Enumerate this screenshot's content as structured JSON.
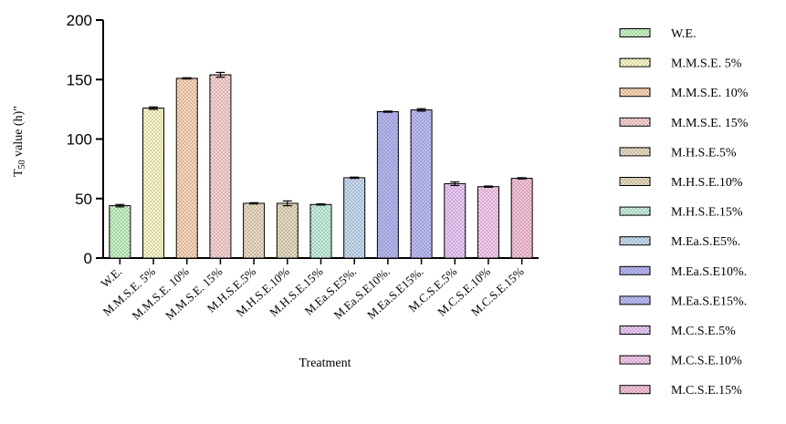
{
  "chart_data": {
    "type": "bar",
    "xlabel": "Treatment",
    "ylabel_main": "T",
    "ylabel_sub": "50",
    "ylabel_rest": " value (h)\"",
    "ylim": [
      0,
      200
    ],
    "yticks": [
      0,
      50,
      100,
      150,
      200
    ],
    "categories": [
      "W.E.",
      "M.M.S.E. 5%",
      "M.M.S.E. 10%",
      "M.M.S.E. 15%",
      "M.H.S.E.5%",
      "M.H.S.E.10%",
      "M.H.S.E.15%",
      "M.Ea.S.E5%.",
      "M.Ea.S.E10%.",
      "M.Ea.S.E15%.",
      "M.C.S.E.5%",
      "M.C.S.E.10%",
      "M.C.S.E.15%"
    ],
    "values": [
      44,
      126,
      151,
      154,
      46,
      46,
      45,
      67.5,
      123,
      124.5,
      62.5,
      60,
      67
    ],
    "errors": [
      1,
      1,
      0.5,
      2,
      0.5,
      2,
      0.5,
      0.5,
      0.5,
      1,
      1.5,
      0.5,
      0.5
    ],
    "legend": [
      "W.E.",
      "M.M.S.E. 5%",
      "M.M.S.E. 10%",
      "M.M.S.E. 15%",
      "M.H.S.E.5%",
      "M.H.S.E.10%",
      "M.H.S.E.15%",
      "M.Ea.S.E5%.",
      "M.Ea.S.E10%.",
      "M.Ea.S.E15%.",
      "M.C.S.E.5%",
      "M.C.S.E.10%",
      "M.C.S.E.15%"
    ],
    "legend_position": "right",
    "colors": [
      "#c8f5c4",
      "#fdfbc8",
      "#fdd8b8",
      "#fcd4d4",
      "#ecdcc4",
      "#e8dcc0",
      "#c8f2e0",
      "#c8dcf2",
      "#b8b8f5",
      "#bcbcf8",
      "#eccaf8",
      "#f8ccee",
      "#f8c4dc"
    ],
    "pattern": "dotted",
    "grid": false
  }
}
